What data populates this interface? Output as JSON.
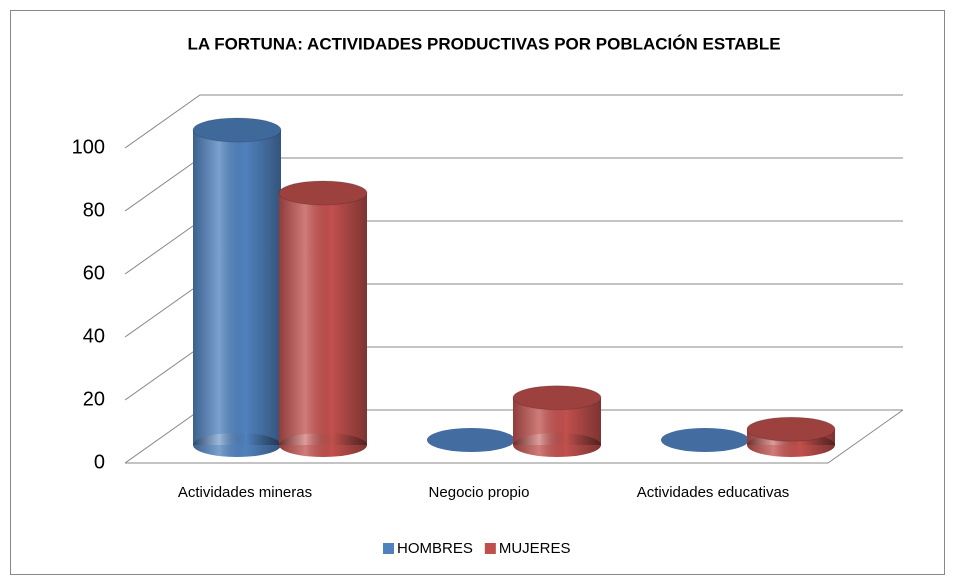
{
  "chart_data": {
    "type": "bar3d",
    "title": "LA FORTUNA: ACTIVIDADES PRODUCTIVAS POR POBLACIÓN ESTABLE",
    "categories": [
      "Actividades mineras",
      "Negocio propio",
      "Actividades educativas"
    ],
    "series": [
      {
        "name": "HOMBRES",
        "color": "#4f81bd",
        "values": [
          100,
          0,
          0
        ]
      },
      {
        "name": "MUJERES",
        "color": "#c0504d",
        "values": [
          80,
          15,
          5
        ]
      }
    ],
    "ylim": [
      0,
      100
    ],
    "yticks": [
      0,
      20,
      40,
      60,
      80,
      100
    ],
    "grid": true,
    "legend": "bottom"
  }
}
